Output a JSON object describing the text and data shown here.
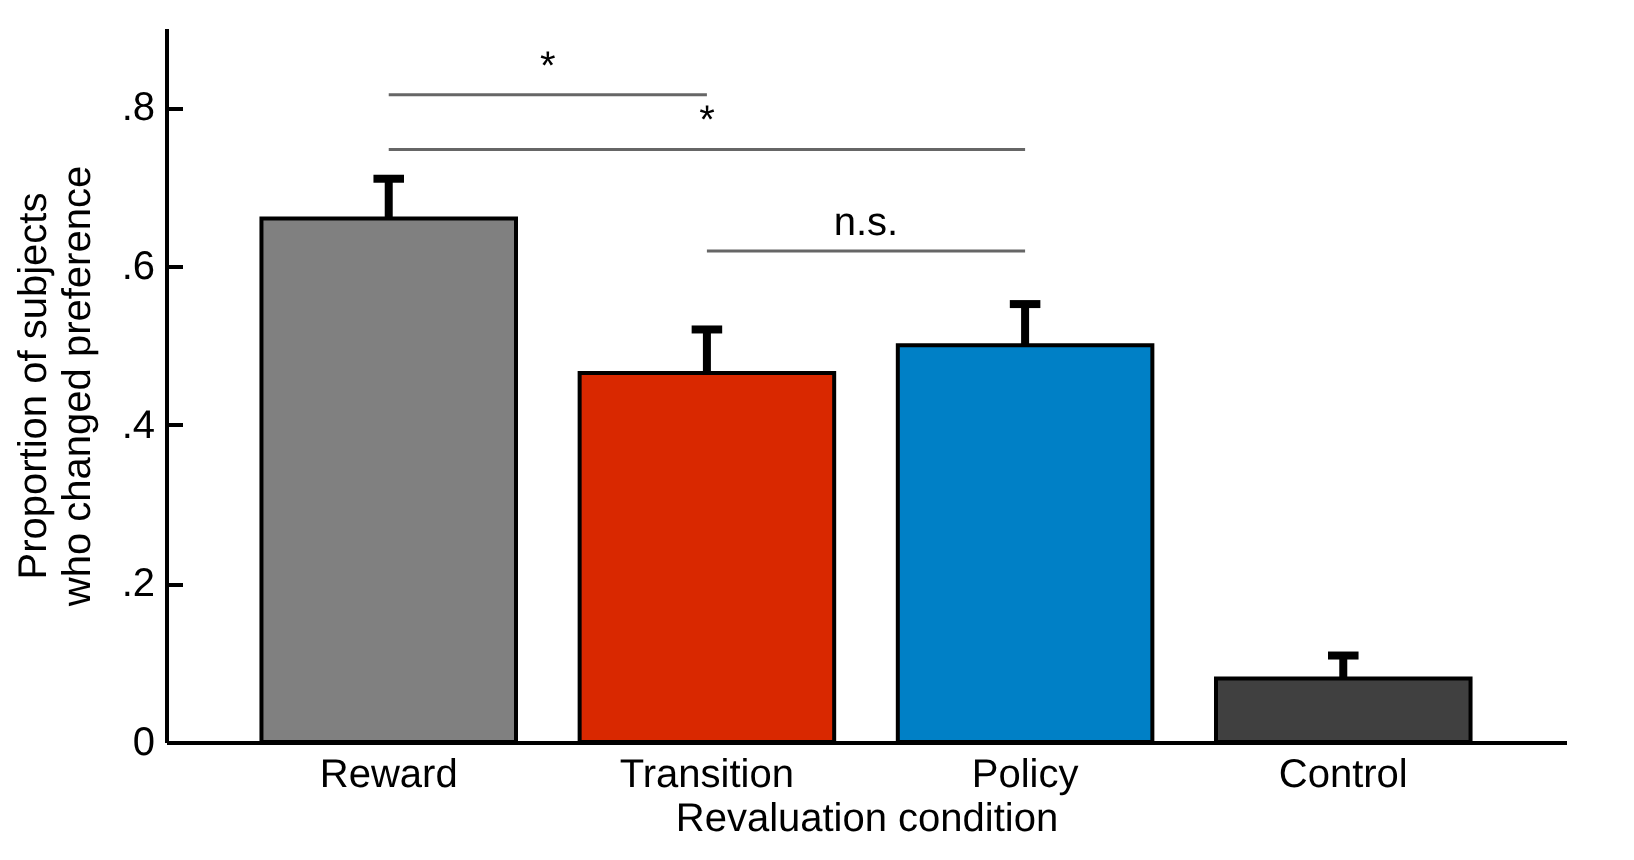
{
  "chart_data": {
    "type": "bar",
    "xlabel": "Revaluation condition",
    "ylabel": "Proportion of subjects\nwho changed preference",
    "categories": [
      "Reward",
      "Transition",
      "Policy",
      "Control"
    ],
    "values": [
      0.66,
      0.465,
      0.5,
      0.08
    ],
    "colors": [
      "#808080",
      "#d92800",
      "#0080c6",
      "#404040"
    ],
    "errors": [
      [
        0.66,
        0.71
      ],
      [
        0.465,
        0.52
      ],
      [
        0.5,
        0.552
      ],
      [
        0.08,
        0.109
      ]
    ],
    "ylim": [
      0,
      0.9
    ],
    "yticks": [
      0,
      {
        "value": 0.2,
        "label": ".2"
      },
      {
        "value": 0.4,
        "label": ".4"
      },
      {
        "value": 0.6,
        "label": ".6"
      },
      {
        "value": 0.8,
        "label": ".8"
      }
    ],
    "annotations": [
      "*",
      "*",
      "n.s."
    ]
  }
}
